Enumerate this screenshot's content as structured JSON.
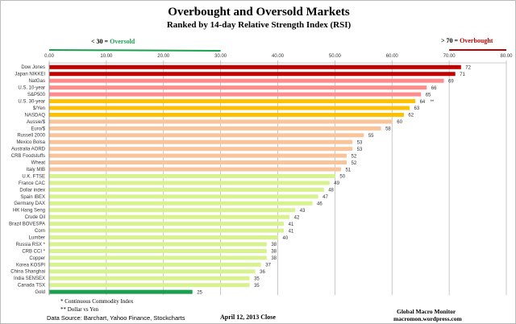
{
  "chart_data": {
    "type": "bar",
    "orientation": "horizontal",
    "title": "Overbought and Oversold Markets",
    "subtitle": "Ranked by 14-day Relative Strength Index (RSI)",
    "xlim": [
      0,
      80
    ],
    "x_ticks": [
      "0.00",
      "10.00",
      "20.00",
      "30.00",
      "40.00",
      "50.00",
      "60.00",
      "70.00",
      "80.00"
    ],
    "grid": true,
    "categories": [
      "Dow Jones",
      "Japan NIKKEI",
      "NatGas",
      "U.S. 10-year",
      "S&P500",
      "U.S. 30-year",
      "$/Yen",
      "NASDAQ",
      "Aussie/$",
      "Euro/$",
      "Russell 2000",
      "Mexico Bolsa",
      "Australia AORD",
      "CRB Foodstuffs",
      "Wheat",
      "Italy  MIB",
      "U.K. FTSE",
      "France CAC",
      "Dollar index",
      "Spain IBEX",
      "Germany DAX",
      "HK  Hang Seng",
      "Crude Oil",
      "Brazil BOVESPA",
      "Corn",
      "Lumber",
      "Russia RSX *",
      "CRB CCI *",
      "Copper",
      "Korea KOSPI",
      "China Shanghai",
      "India SENSEX",
      "Canada TSX",
      "Gold"
    ],
    "values": [
      72,
      71,
      69,
      66,
      65,
      64,
      63,
      62,
      60,
      58,
      55,
      53,
      53,
      52,
      52,
      51,
      50,
      49,
      48,
      47,
      46,
      43,
      42,
      41,
      41,
      40,
      38,
      38,
      38,
      37,
      36,
      35,
      35,
      25
    ],
    "value_suffixes": {
      "5": "**"
    },
    "colors": [
      "#c00000",
      "#c00000",
      "#ff8b8b",
      "#ff8b8b",
      "#ff8b8b",
      "#ffc000",
      "#ffc000",
      "#ffc000",
      "#f9c49a",
      "#f9c49a",
      "#f9c49a",
      "#f9c49a",
      "#f9c49a",
      "#f9c49a",
      "#f9c49a",
      "#f9c49a",
      "#d7f28e",
      "#d7f28e",
      "#d7f28e",
      "#d7f28e",
      "#d7f28e",
      "#d7f28e",
      "#d7f28e",
      "#d7f28e",
      "#d7f28e",
      "#d7f28e",
      "#d7f28e",
      "#d7f28e",
      "#d7f28e",
      "#d7f28e",
      "#d7f28e",
      "#d7f28e",
      "#d7f28e",
      "#1aa04f"
    ],
    "annotations": {
      "oversold_prefix": "< 30 = ",
      "oversold_label": "Oversold",
      "oversold_color": "#1aa04f",
      "oversold_range": [
        0,
        30
      ],
      "overbought_prefix": "> 70 = ",
      "overbought_label": "Overbought",
      "overbought_color": "#c00000",
      "overbought_range": [
        70,
        80
      ]
    }
  },
  "footer": {
    "note1": "* Continuous Commodity Index",
    "note2": "** Dollar vs Yen",
    "source": "Data Source:  Barchart,  Yahoo Finance, Stockcharts",
    "date": "April 12, 2013  Close",
    "brand": "Global Macro Monitor",
    "site": "macromon.wordpress.com"
  }
}
